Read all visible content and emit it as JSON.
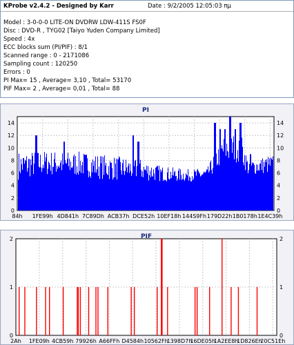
{
  "info": {
    "title": "KProbe v2.4.2 - Designed by Karr",
    "date": "Date : 9/2/2005 12:05:03 πμ",
    "lines": [
      "Model : 3-0-0-0 LITE-ON DVDRW LDW-411S   FS0F",
      "Disc : DVD-R , TYG02 [Taiyo Yuden Company Limited]",
      "Speed : 4x",
      "ECC blocks sum (PI/PIF) : 8/1",
      "Scanned range : 0 - 2171086",
      "Sampling count : 120250",
      "Errors : 0",
      "PI Max= 15 , Average= 3,10 , Total= 53170",
      "PIF Max= 2 , Average= 0,01 , Total= 88"
    ]
  },
  "chart_data": [
    {
      "type": "bar",
      "title": "PI",
      "ylim": [
        0,
        15
      ],
      "yticks": [
        "0",
        "2",
        "4",
        "6",
        "8",
        "10",
        "12",
        "14"
      ],
      "xtick_labels": [
        "84h",
        "1FE99h",
        "4D841h",
        "7C89Dh",
        "ACB37h",
        "DCE52h",
        "10EF18h",
        "144S9Fh",
        "179D22h",
        "1B0178h",
        "1E4C39h"
      ],
      "grid": true,
      "color": "#0000ff",
      "profile": [
        {
          "x": 0.0,
          "base": 6.5,
          "spread": 4.5
        },
        {
          "x": 0.1,
          "base": 7.0,
          "spread": 4.0
        },
        {
          "x": 0.25,
          "base": 6.8,
          "spread": 4.0
        },
        {
          "x": 0.36,
          "base": 6.2,
          "spread": 4.0
        },
        {
          "x": 0.48,
          "base": 6.0,
          "spread": 3.5
        },
        {
          "x": 0.56,
          "base": 5.5,
          "spread": 2.5
        },
        {
          "x": 0.66,
          "base": 5.3,
          "spread": 2.0
        },
        {
          "x": 0.74,
          "base": 5.5,
          "spread": 2.0
        },
        {
          "x": 0.8,
          "base": 9.0,
          "spread": 4.5
        },
        {
          "x": 0.87,
          "base": 9.5,
          "spread": 5.0
        },
        {
          "x": 0.9,
          "base": 6.5,
          "spread": 2.5
        },
        {
          "x": 1.0,
          "base": 7.0,
          "spread": 3.0
        }
      ],
      "peaks": [
        {
          "x": 0.07,
          "value": 12
        },
        {
          "x": 0.18,
          "value": 11
        },
        {
          "x": 0.45,
          "value": 12
        },
        {
          "x": 0.47,
          "value": 11
        },
        {
          "x": 0.77,
          "value": 14
        },
        {
          "x": 0.79,
          "value": 13
        },
        {
          "x": 0.81,
          "value": 13
        },
        {
          "x": 0.83,
          "value": 15
        },
        {
          "x": 0.85,
          "value": 13
        },
        {
          "x": 0.87,
          "value": 14
        },
        {
          "x": 0.91,
          "value": 9
        }
      ]
    },
    {
      "type": "bar",
      "title": "PIF",
      "ylim": [
        0,
        2
      ],
      "yticks": [
        "0",
        "1",
        "2"
      ],
      "xtick_labels": [
        "2Ah",
        "1FE09h",
        "4CB59h",
        "79926h",
        "A66FFh",
        "D4584h",
        "10562Fh",
        "1398D7h",
        "16DE05h",
        "1A2EE8h",
        "1D826Eh",
        "20C51Eh"
      ],
      "grid": true,
      "color": "#ff0000",
      "spikes": [
        {
          "x": 0.008,
          "value": 1
        },
        {
          "x": 0.03,
          "value": 1
        },
        {
          "x": 0.075,
          "value": 1
        },
        {
          "x": 0.11,
          "value": 1
        },
        {
          "x": 0.125,
          "value": 1
        },
        {
          "x": 0.178,
          "value": 1
        },
        {
          "x": 0.232,
          "value": 1
        },
        {
          "x": 0.236,
          "value": 1
        },
        {
          "x": 0.244,
          "value": 1
        },
        {
          "x": 0.276,
          "value": 1
        },
        {
          "x": 0.304,
          "value": 1
        },
        {
          "x": 0.312,
          "value": 1
        },
        {
          "x": 0.35,
          "value": 1
        },
        {
          "x": 0.44,
          "value": 1
        },
        {
          "x": 0.452,
          "value": 1
        },
        {
          "x": 0.54,
          "value": 1
        },
        {
          "x": 0.556,
          "value": 2
        },
        {
          "x": 0.559,
          "value": 2
        },
        {
          "x": 0.58,
          "value": 1
        },
        {
          "x": 0.686,
          "value": 1
        },
        {
          "x": 0.694,
          "value": 1
        },
        {
          "x": 0.742,
          "value": 1
        },
        {
          "x": 0.79,
          "value": 2
        },
        {
          "x": 0.825,
          "value": 1
        },
        {
          "x": 0.853,
          "value": 1
        },
        {
          "x": 0.925,
          "value": 1
        }
      ]
    }
  ]
}
